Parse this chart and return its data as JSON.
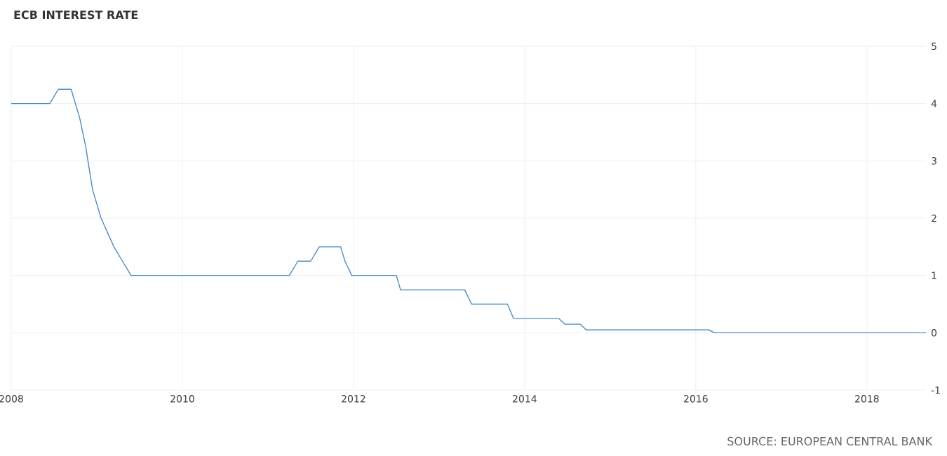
{
  "chart_data": {
    "type": "line",
    "title": "ECB INTEREST RATE",
    "annotations": [
      "SOURCE: EUROPEAN CENTRAL BANK"
    ],
    "x": [
      2008.0,
      2008.45,
      2008.55,
      2008.7,
      2008.8,
      2008.87,
      2008.95,
      2009.05,
      2009.2,
      2009.3,
      2009.4,
      2011.25,
      2011.35,
      2011.5,
      2011.6,
      2011.85,
      2011.9,
      2011.98,
      2012.5,
      2012.55,
      2013.3,
      2013.38,
      2013.8,
      2013.87,
      2014.4,
      2014.47,
      2014.65,
      2014.72,
      2016.15,
      2016.22,
      2018.69
    ],
    "series": [
      {
        "color": "#4c8bc5",
        "values": [
          4.0,
          4.0,
          4.25,
          4.25,
          3.75,
          3.25,
          2.5,
          2.0,
          1.5,
          1.25,
          1.0,
          1.0,
          1.25,
          1.25,
          1.5,
          1.5,
          1.25,
          1.0,
          1.0,
          0.75,
          0.75,
          0.5,
          0.5,
          0.25,
          0.25,
          0.15,
          0.15,
          0.05,
          0.05,
          0.0,
          0.0
        ]
      }
    ],
    "xlim": [
      2008,
      2018.69
    ],
    "ylim": [
      -1,
      5
    ],
    "xticks": [
      2008,
      2010,
      2012,
      2014,
      2016,
      2018
    ],
    "yticks": [
      -1,
      0,
      1,
      2,
      3,
      4,
      5
    ],
    "grid": true,
    "marker": "none",
    "line_style": "solid"
  }
}
